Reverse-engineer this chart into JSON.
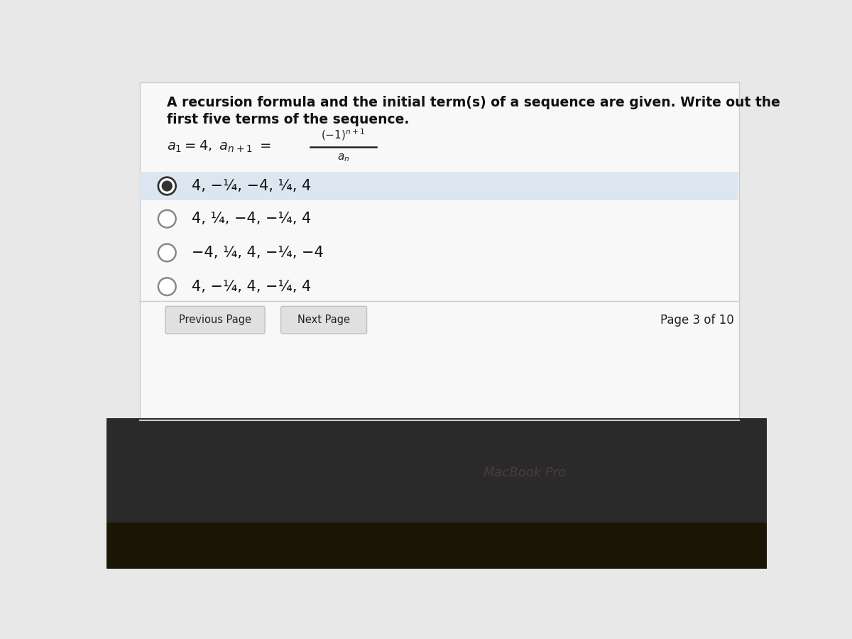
{
  "title_line1": "A recursion formula and the initial term(s) of a sequence are given. Write out the",
  "title_line2": "first five terms of the sequence.",
  "options": [
    "4, −¼, −4, ¼, 4",
    "4, ¼, −4, −¼, 4",
    "−4, ¼, 4, −¼, −4",
    "4, −¼, 4, −¼, 4"
  ],
  "selected_index": 0,
  "light_gray_bg": "#e8e8e8",
  "white_area_color": "#f8f8f8",
  "selected_bg_color": "#dce6f1",
  "button_color": "#e0e0e0",
  "button_border": "#c0c0c0",
  "page_info": "Page 3 of 10",
  "dark_bar_color": "#2a2a2a",
  "darker_bar_color": "#1a1505",
  "macbook_text": "MacBook Pro",
  "macbook_color": "#504040",
  "separator_color": "#cccccc"
}
